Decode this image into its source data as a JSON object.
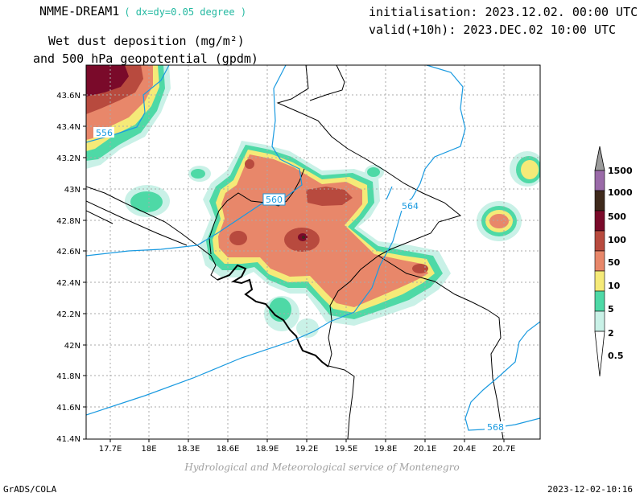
{
  "header": {
    "model": "NMME-DREAM1",
    "resolution": "( dx=dy=0.05 degree )",
    "title_line1": "Wet dust deposition (mg/m²)",
    "title_line2": "and 500 hPa geopotential (gpdm)",
    "init": "initialisation: 2023.12.02. 00:00 UTC",
    "valid": "valid(+10h): 2023.DEC.02 10:00 UTC"
  },
  "map": {
    "lat_labels": [
      "43.6N",
      "43.4N",
      "43.2N",
      "43N",
      "42.8N",
      "42.6N",
      "42.4N",
      "42.2N",
      "42N",
      "41.8N",
      "41.6N",
      "41.4N"
    ],
    "lon_labels": [
      "17.7E",
      "18E",
      "18.3E",
      "18.6E",
      "18.9E",
      "19.2E",
      "19.5E",
      "19.8E",
      "20.1E",
      "20.4E",
      "20.7E"
    ],
    "contour_labels": [
      "556",
      "560",
      "564",
      "568"
    ]
  },
  "legend": {
    "levels": [
      "1500",
      "1000",
      "500",
      "100",
      "50",
      "10",
      "5",
      "2",
      "0.5"
    ],
    "colors": [
      "#9b9b9b",
      "#9a6aa8",
      "#3f2a1c",
      "#7a0a2a",
      "#b84a3e",
      "#e8876a",
      "#f5ea78",
      "#4ed9a6",
      "#c9f1e7"
    ]
  },
  "footer": {
    "credit": "Hydrological and Meteorological service of Montenegro",
    "left": "GrADS/COLA",
    "right": "2023-12-02-10:16"
  },
  "colors": {
    "contour": "#1a9ae0",
    "contour_label": "#1a9ae0",
    "grid": "#aaaaaa"
  }
}
